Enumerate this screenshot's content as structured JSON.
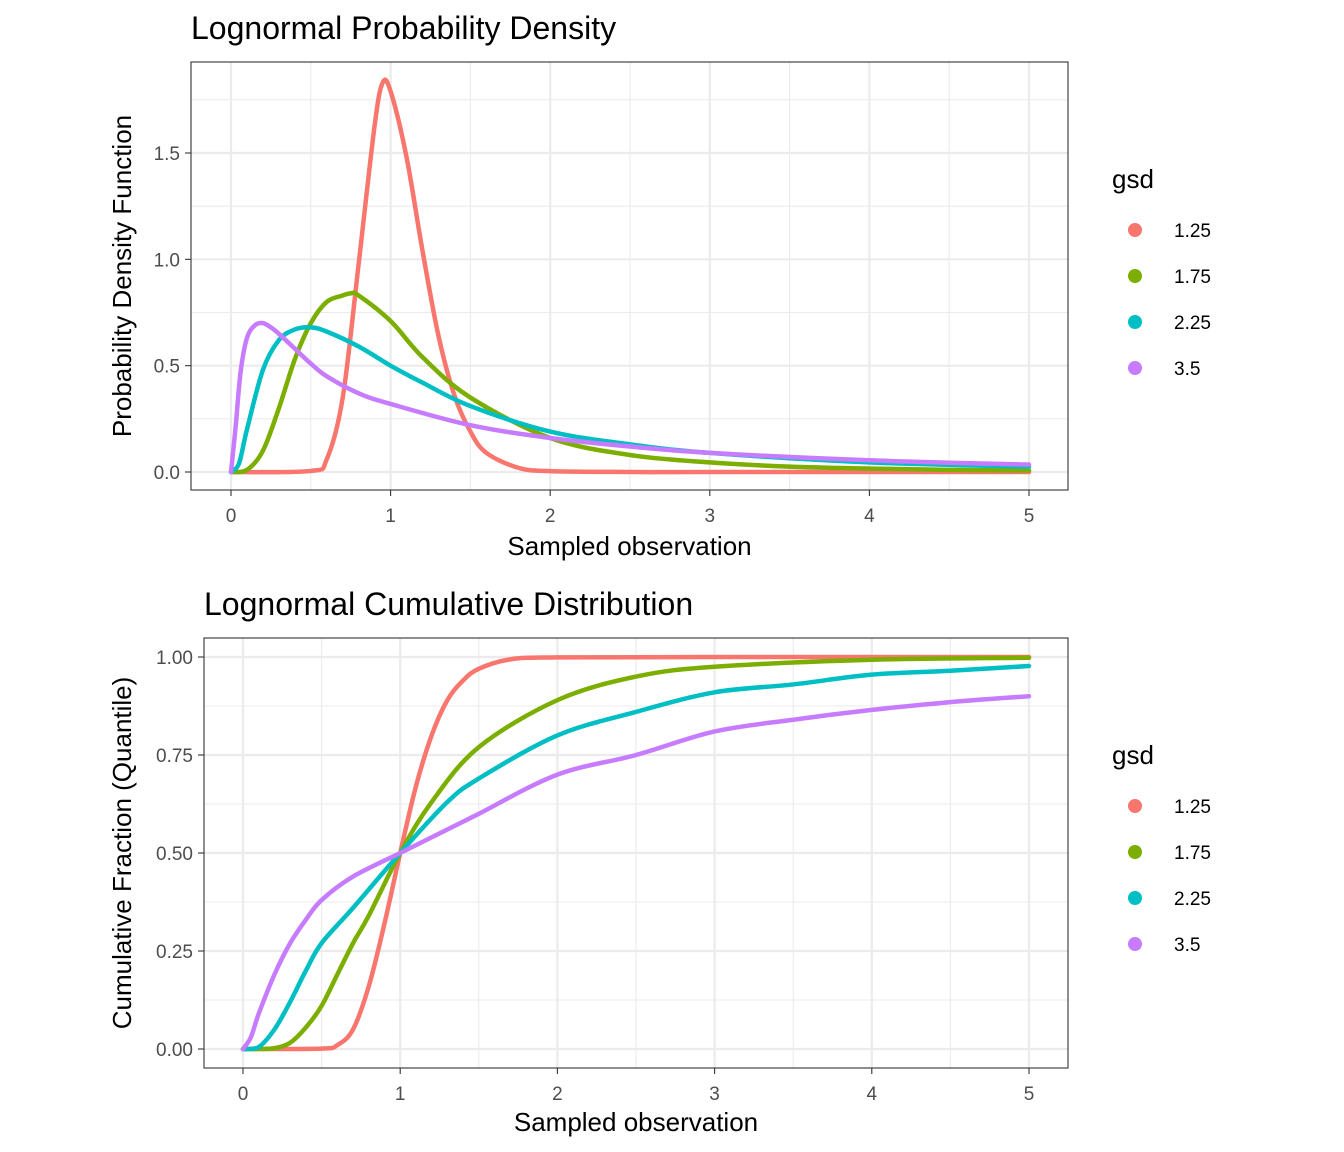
{
  "chart_data": [
    {
      "type": "line",
      "title": "Lognormal Probability Density",
      "xlabel": "Sampled observation",
      "ylabel": "Probability Density Function",
      "xlim": [
        0,
        5
      ],
      "ylim": [
        0,
        1.85
      ],
      "x_ticks": [
        0,
        1,
        2,
        3,
        4,
        5
      ],
      "x_tick_labels": [
        "0",
        "1",
        "2",
        "3",
        "4",
        "5"
      ],
      "y_ticks": [
        0,
        0.5,
        1.0,
        1.5
      ],
      "y_tick_labels": [
        "0.0",
        "0.5",
        "1.0",
        "1.5"
      ],
      "grid": true,
      "legend": {
        "title": "gsd",
        "position": "right"
      },
      "series": [
        {
          "name": "1.25",
          "color": "#F8766D",
          "x": [
            0,
            0.5,
            0.6,
            0.7,
            0.8,
            0.9,
            0.95,
            1.0,
            1.1,
            1.2,
            1.3,
            1.4,
            1.5,
            1.6,
            1.8,
            2.0,
            2.5,
            3,
            5
          ],
          "y": [
            0,
            0.005,
            0.06,
            0.35,
            0.98,
            1.63,
            1.83,
            1.79,
            1.48,
            1.04,
            0.64,
            0.36,
            0.19,
            0.09,
            0.02,
            0.004,
            0,
            0,
            0
          ]
        },
        {
          "name": "1.75",
          "color": "#7CAE00",
          "x": [
            0,
            0.1,
            0.2,
            0.3,
            0.4,
            0.5,
            0.6,
            0.7,
            0.75,
            0.8,
            1.0,
            1.2,
            1.5,
            2.0,
            2.5,
            3,
            3.5,
            4,
            4.5,
            5
          ],
          "y": [
            0,
            0.01,
            0.1,
            0.3,
            0.53,
            0.7,
            0.8,
            0.83,
            0.84,
            0.83,
            0.71,
            0.54,
            0.35,
            0.16,
            0.08,
            0.045,
            0.025,
            0.016,
            0.01,
            0.007
          ]
        },
        {
          "name": "2.25",
          "color": "#00BFC4",
          "x": [
            0,
            0.05,
            0.1,
            0.2,
            0.3,
            0.4,
            0.5,
            0.6,
            0.8,
            1.0,
            1.2,
            1.5,
            2.0,
            2.5,
            3,
            4,
            5
          ],
          "y": [
            0,
            0.04,
            0.2,
            0.48,
            0.62,
            0.67,
            0.68,
            0.66,
            0.59,
            0.5,
            0.42,
            0.31,
            0.19,
            0.13,
            0.09,
            0.045,
            0.025
          ]
        },
        {
          "name": "3.5",
          "color": "#C77CFF",
          "x": [
            0,
            0.03,
            0.06,
            0.1,
            0.15,
            0.2,
            0.25,
            0.3,
            0.4,
            0.5,
            0.6,
            0.8,
            1.0,
            1.5,
            2.0,
            2.5,
            3,
            4,
            5
          ],
          "y": [
            0,
            0.22,
            0.47,
            0.63,
            0.69,
            0.7,
            0.68,
            0.65,
            0.58,
            0.51,
            0.45,
            0.37,
            0.32,
            0.22,
            0.16,
            0.12,
            0.09,
            0.055,
            0.035
          ]
        }
      ]
    },
    {
      "type": "line",
      "title": "Lognormal Cumulative Distribution",
      "xlabel": "Sampled observation",
      "ylabel": "Cumulative Fraction (Quantile)",
      "xlim": [
        0,
        5
      ],
      "ylim": [
        0,
        1.0
      ],
      "x_ticks": [
        0,
        1,
        2,
        3,
        4,
        5
      ],
      "x_tick_labels": [
        "0",
        "1",
        "2",
        "3",
        "4",
        "5"
      ],
      "y_ticks": [
        0,
        0.25,
        0.5,
        0.75,
        1.0
      ],
      "y_tick_labels": [
        "0.00",
        "0.25",
        "0.50",
        "0.75",
        "1.00"
      ],
      "grid": true,
      "legend": {
        "title": "gsd",
        "position": "right"
      },
      "series": [
        {
          "name": "1.25",
          "color": "#F8766D",
          "x": [
            0,
            0.5,
            0.6,
            0.7,
            0.8,
            0.9,
            1.0,
            1.1,
            1.2,
            1.3,
            1.4,
            1.5,
            1.7,
            2.0,
            3,
            5
          ],
          "y": [
            0,
            0.001,
            0.01,
            0.05,
            0.16,
            0.32,
            0.5,
            0.67,
            0.8,
            0.89,
            0.94,
            0.97,
            0.994,
            0.999,
            1.0,
            1.0
          ]
        },
        {
          "name": "1.75",
          "color": "#7CAE00",
          "x": [
            0,
            0.1,
            0.2,
            0.3,
            0.4,
            0.5,
            0.6,
            0.7,
            0.8,
            1.0,
            1.2,
            1.5,
            2.0,
            2.5,
            3,
            4,
            5
          ],
          "y": [
            0,
            0.0,
            0.002,
            0.016,
            0.055,
            0.11,
            0.19,
            0.27,
            0.34,
            0.5,
            0.63,
            0.77,
            0.89,
            0.95,
            0.975,
            0.993,
            0.998
          ]
        },
        {
          "name": "2.25",
          "color": "#00BFC4",
          "x": [
            0,
            0.1,
            0.2,
            0.3,
            0.4,
            0.5,
            0.7,
            1.0,
            1.3,
            1.5,
            2.0,
            2.5,
            3,
            3.5,
            4,
            4.5,
            5
          ],
          "y": [
            0,
            0.005,
            0.05,
            0.12,
            0.2,
            0.27,
            0.36,
            0.5,
            0.63,
            0.69,
            0.8,
            0.86,
            0.91,
            0.93,
            0.955,
            0.965,
            0.977
          ]
        },
        {
          "name": "3.5",
          "color": "#C77CFF",
          "x": [
            0,
            0.05,
            0.1,
            0.2,
            0.3,
            0.4,
            0.5,
            0.7,
            1.0,
            1.3,
            1.5,
            2.0,
            2.5,
            3,
            3.5,
            4,
            4.5,
            5
          ],
          "y": [
            0,
            0.03,
            0.09,
            0.19,
            0.27,
            0.33,
            0.38,
            0.44,
            0.5,
            0.56,
            0.6,
            0.7,
            0.75,
            0.81,
            0.84,
            0.865,
            0.885,
            0.9
          ]
        }
      ]
    }
  ]
}
